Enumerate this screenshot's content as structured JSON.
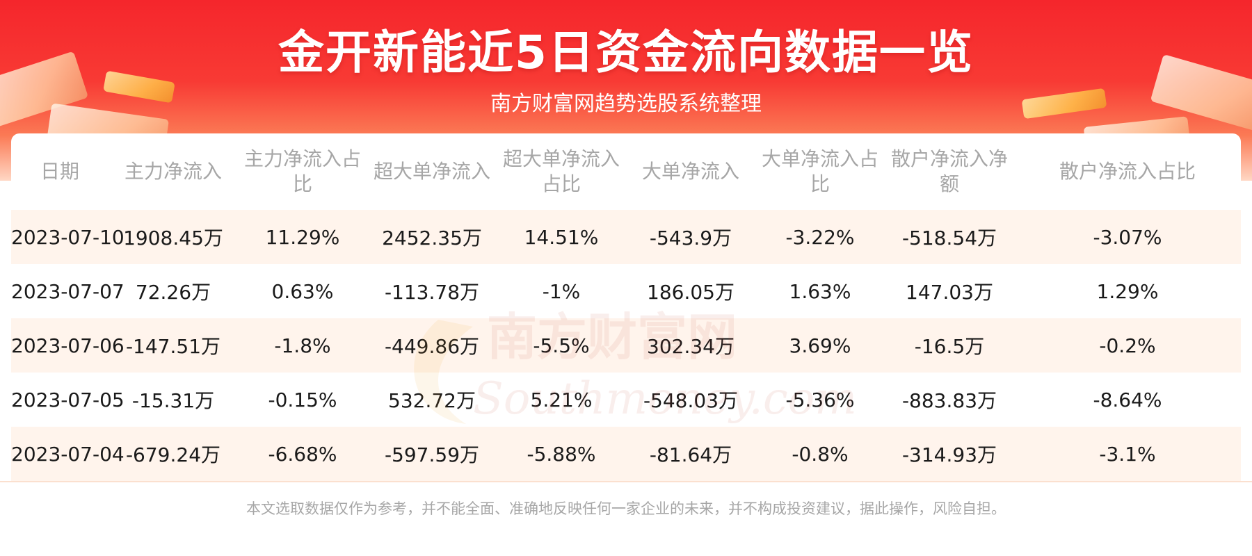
{
  "title": "金开新能近5日资金流向数据一览",
  "subtitle": "南方财富网趋势选股系统整理",
  "watermark": {
    "cn": "南方财富网",
    "en": "Southmoney.com"
  },
  "colors": {
    "header_red": "#f5262c",
    "row_highlight": "#fff4ec",
    "header_text": "#a6a6a6"
  },
  "chart_data": {
    "type": "table",
    "columns": [
      "日期",
      "主力净流入",
      "主力净流入占比",
      "超大单净流入",
      "超大单净流入占比",
      "大单净流入",
      "大单净流入占比",
      "散户净流入净额",
      "散户净流入占比"
    ],
    "rows": [
      [
        "2023-07-10",
        "1908.45万",
        "11.29%",
        "2452.35万",
        "14.51%",
        "-543.9万",
        "-3.22%",
        "-518.54万",
        "-3.07%"
      ],
      [
        "2023-07-07",
        "72.26万",
        "0.63%",
        "-113.78万",
        "-1%",
        "186.05万",
        "1.63%",
        "147.03万",
        "1.29%"
      ],
      [
        "2023-07-06",
        "-147.51万",
        "-1.8%",
        "-449.86万",
        "-5.5%",
        "302.34万",
        "3.69%",
        "-16.5万",
        "-0.2%"
      ],
      [
        "2023-07-05",
        "-15.31万",
        "-0.15%",
        "532.72万",
        "5.21%",
        "-548.03万",
        "-5.36%",
        "-883.83万",
        "-8.64%"
      ],
      [
        "2023-07-04",
        "-679.24万",
        "-6.68%",
        "-597.59万",
        "-5.88%",
        "-81.64万",
        "-0.8%",
        "-314.93万",
        "-3.1%"
      ]
    ]
  },
  "disclaimer": "本文选取数据仅作为参考，并不能全面、准确地反映任何一家企业的未来，并不构成投资建议，据此操作，风险自担。"
}
